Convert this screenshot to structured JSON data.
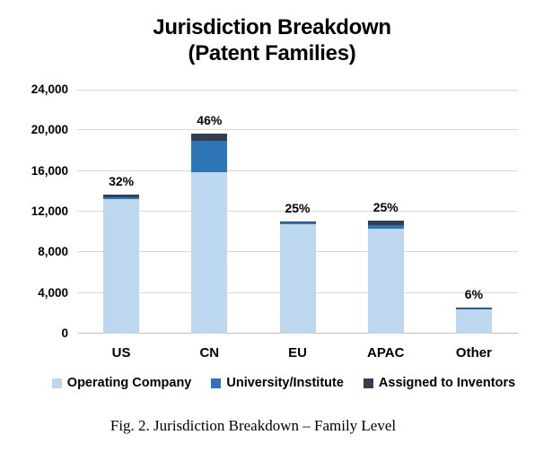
{
  "figure": {
    "title_line1": "Jurisdiction Breakdown",
    "title_line2": "(Patent Families)",
    "caption": "Fig. 2. Jurisdiction Breakdown – Family Level"
  },
  "chart_data": {
    "type": "bar",
    "stacked": true,
    "title": "Jurisdiction Breakdown (Patent Families)",
    "categories": [
      "US",
      "CN",
      "EU",
      "APAC",
      "Other"
    ],
    "series": [
      {
        "name": "Operating Company",
        "color": "#BDD7EE",
        "values": [
          13200,
          15850,
          10750,
          10300,
          2400
        ]
      },
      {
        "name": "University/Institute",
        "color": "#2E75B6",
        "values": [
          250,
          3100,
          200,
          400,
          100
        ]
      },
      {
        "name": "Assigned to Inventors",
        "color": "#333F50",
        "values": [
          250,
          700,
          100,
          400,
          50
        ]
      }
    ],
    "bar_total_labels": [
      "32%",
      "46%",
      "25%",
      "25%",
      "6%"
    ],
    "approx_totals": [
      13700,
      19650,
      11050,
      11100,
      2550
    ],
    "ylim": [
      0,
      24000
    ],
    "yticks": [
      0,
      4000,
      8000,
      12000,
      16000,
      20000,
      24000
    ],
    "ytick_labels": [
      "0",
      "4,000",
      "8,000",
      "12,000",
      "16,000",
      "20,000",
      "24,000"
    ],
    "xlabel": "",
    "ylabel": "",
    "grid": "horizontal",
    "legend_position": "bottom",
    "colors": {
      "grid": "#D9D9D9",
      "axis": "#BFBFBF",
      "text": "#000000"
    }
  }
}
